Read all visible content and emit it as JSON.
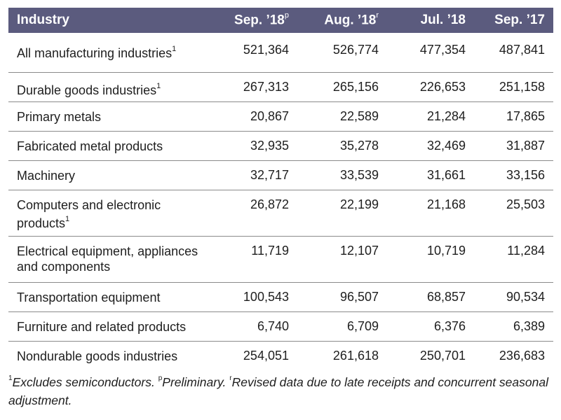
{
  "table": {
    "headers": {
      "industry": "Industry",
      "sep18": "Sep. ’18",
      "sep18_mark": "p",
      "aug18": "Aug. ’18",
      "aug18_mark": "r",
      "jul18": "Jul. ’18",
      "sep17": "Sep. ’17"
    },
    "rows": [
      {
        "name": "All manufacturing industries",
        "fn": "1",
        "v": [
          "521,364",
          "526,774",
          "477,354",
          "487,841"
        ]
      },
      {
        "name": "Durable goods industries",
        "fn": "1",
        "v": [
          "267,313",
          "265,156",
          "226,653",
          "251,158"
        ]
      },
      {
        "name": "Primary metals",
        "fn": "",
        "v": [
          "20,867",
          "22,589",
          "21,284",
          "17,865"
        ]
      },
      {
        "name": "Fabricated metal products",
        "fn": "",
        "v": [
          "32,935",
          "35,278",
          "32,469",
          "31,887"
        ]
      },
      {
        "name": "Machinery",
        "fn": "",
        "v": [
          "32,717",
          "33,539",
          "31,661",
          "33,156"
        ]
      },
      {
        "name": "Computers and electronic products",
        "fn": "1",
        "v": [
          "26,872",
          "22,199",
          "21,168",
          "25,503"
        ]
      },
      {
        "name": "Electrical equipment, appliances and components",
        "fn": "",
        "v": [
          "11,719",
          "12,107",
          "10,719",
          "11,284"
        ]
      },
      {
        "name": "Transportation equipment",
        "fn": "",
        "v": [
          "100,543",
          "96,507",
          "68,857",
          "90,534"
        ]
      },
      {
        "name": "Furniture and related products",
        "fn": "",
        "v": [
          "6,740",
          "6,709",
          "6,376",
          "6,389"
        ]
      },
      {
        "name": "Nondurable goods industries",
        "fn": "",
        "v": [
          "254,051",
          "261,618",
          "250,701",
          "236,683"
        ]
      }
    ]
  },
  "footnote": {
    "mark1": "1",
    "text1": "Excludes semiconductors. ",
    "mark2": "p",
    "text2": "Preliminary. ",
    "mark3": "r",
    "text3": "Revised data due to late receipts and concurrent seasonal adjustment."
  }
}
